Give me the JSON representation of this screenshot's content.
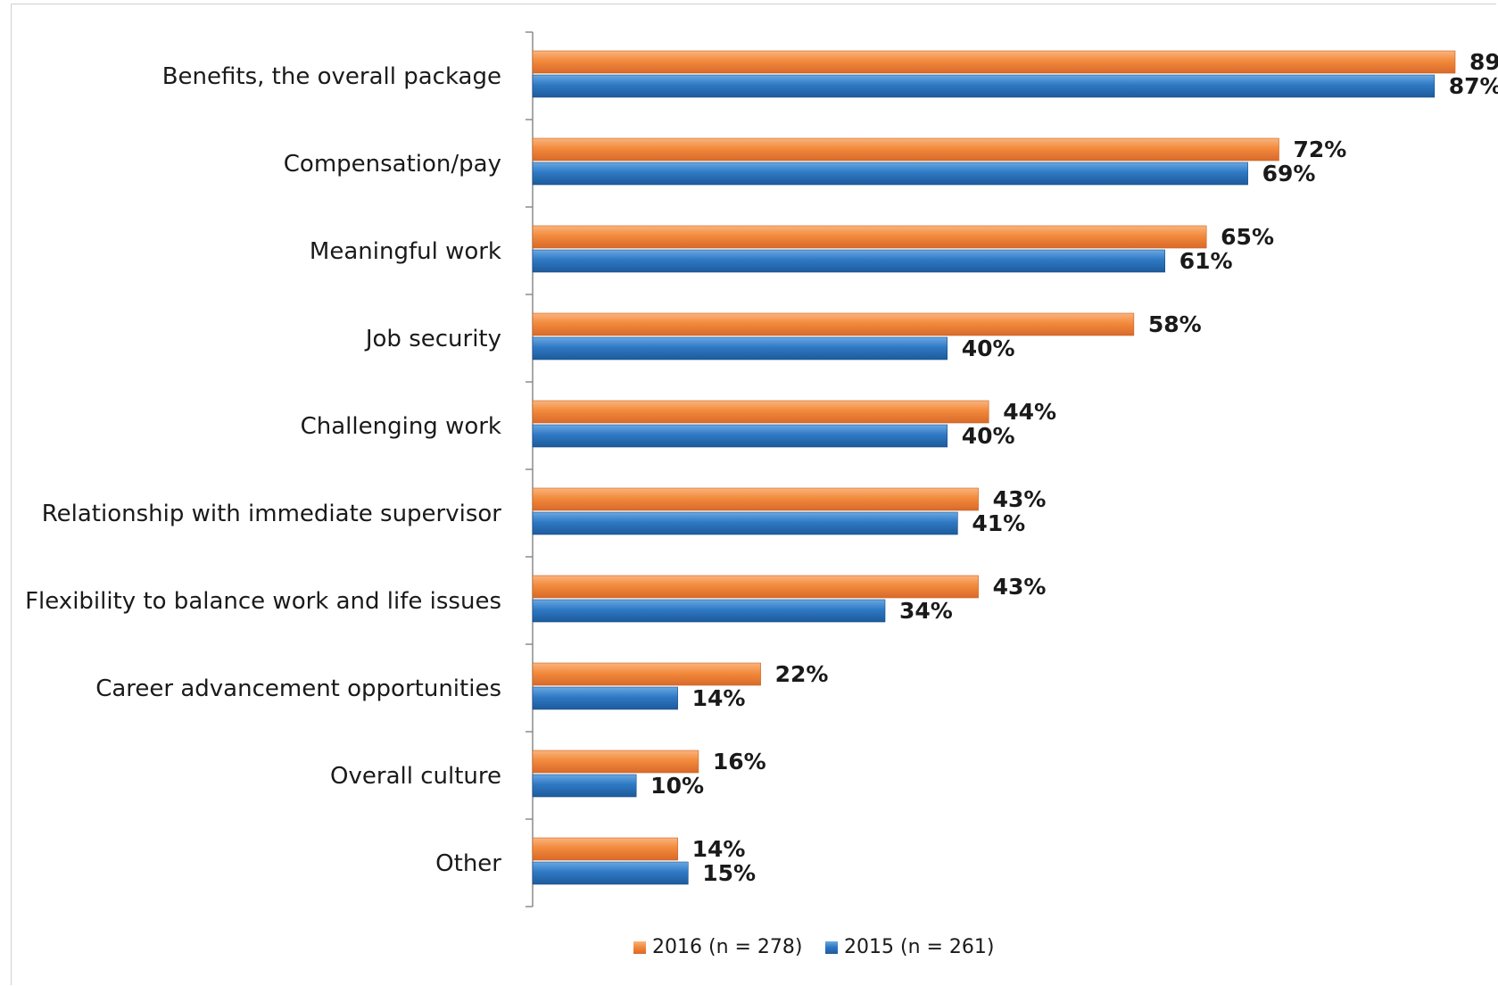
{
  "chart_data": {
    "type": "bar",
    "orientation": "horizontal",
    "categories": [
      "Benefits, the overall package",
      "Compensation/pay",
      "Meaningful work",
      "Job security",
      "Challenging work",
      "Relationship with immediate supervisor",
      "Flexibility to balance work and life issues",
      "Career advancement opportunities",
      "Overall culture",
      "Other"
    ],
    "series": [
      {
        "name": "2016 (n = 278)",
        "color": "#f28a3c",
        "values": [
          89,
          72,
          65,
          58,
          44,
          43,
          43,
          22,
          16,
          14
        ],
        "labels": [
          "89",
          "72%",
          "65%",
          "58%",
          "44%",
          "43%",
          "43%",
          "22%",
          "16%",
          "14%"
        ]
      },
      {
        "name": "2015 (n = 261)",
        "color": "#2f79c4",
        "values": [
          87,
          69,
          61,
          40,
          40,
          41,
          34,
          14,
          10,
          15
        ],
        "labels": [
          "87%",
          "69%",
          "61%",
          "40%",
          "40%",
          "41%",
          "34%",
          "14%",
          "10%",
          "15%"
        ]
      }
    ],
    "xlim": [
      0,
      89
    ],
    "grid": false,
    "legend_position": "bottom"
  }
}
